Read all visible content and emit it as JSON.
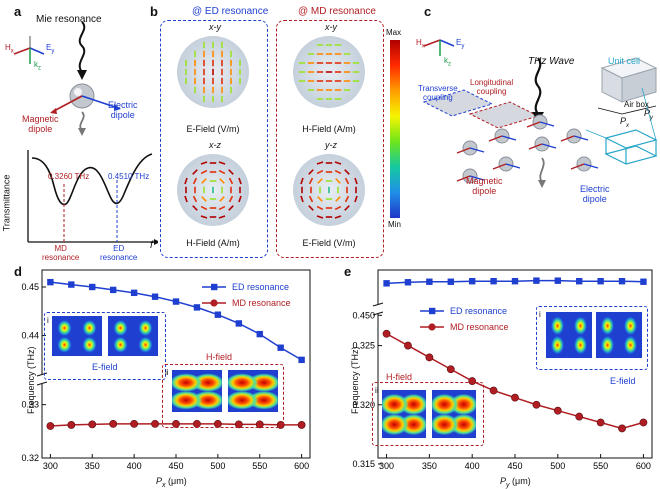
{
  "panel_a": {
    "label": "a",
    "title": "Mie resonance",
    "axes": {
      "h": "H",
      "h_sub": "x",
      "e": "E",
      "e_sub": "y",
      "k": "k",
      "k_sub": "z"
    },
    "magnetic_dipole": "Magnetic\ndipole",
    "electric_dipole": "Electric\ndipole",
    "transmittance_label": "Transmittance",
    "freq_axis": "f",
    "md_freq": "0.3260 THz",
    "ed_freq": "0.4510 THz",
    "md_res": "MD\nresonance",
    "ed_res": "ED\nresonance"
  },
  "panel_b": {
    "label": "b",
    "ed_title": "@ ED resonance",
    "md_title": "@ MD resonance",
    "cells": [
      {
        "plane": "x-y",
        "field": "E-Field (V/m)"
      },
      {
        "plane": "x-y",
        "field": "H-Field (A/m)"
      },
      {
        "plane": "x-z",
        "field": "H-Field (A/m)"
      },
      {
        "plane": "y-z",
        "field": "E-Field (V/m)"
      }
    ],
    "colorbar_max": "Max",
    "colorbar_min": "Min"
  },
  "panel_c": {
    "label": "c",
    "thz_wave": "THz Wave",
    "unit_cell": "Unit cell",
    "air_box": "Air box",
    "transverse": "Transverse\ncoupling",
    "longitudinal": "Longitudinal\ncoupling",
    "magnetic_dipole": "Magnetic\ndipole",
    "electric_dipole": "Electric\ndipole",
    "px": "P",
    "px_sub": "x",
    "py": "P",
    "py_sub": "y"
  },
  "panel_d": {
    "label": "d",
    "legend_ed": "ED  resonance",
    "legend_md": "MD resonance",
    "inset_i_caption": "E-field",
    "inset_ii_caption": "H-field",
    "inset_i": "i",
    "inset_ii": "ii",
    "ylabel": "Frequency (THz)",
    "xlabel_var": "P",
    "xlabel_sub": "x",
    "xlabel_unit": " (μm)"
  },
  "panel_e": {
    "label": "e",
    "legend_ed": "ED  resonance",
    "legend_md": "MD resonance",
    "inset_i_caption": "E-field",
    "inset_ii_caption": "H-field",
    "inset_i": "i",
    "inset_ii": "ii",
    "ylabel": "Frequency (THz)",
    "xlabel_var": "P",
    "xlabel_sub": "y",
    "xlabel_unit": " (μm)"
  },
  "colors": {
    "ed": "#1f3fd0",
    "md": "#b01e23"
  },
  "chart_data": [
    {
      "type": "line",
      "panel": "d",
      "x": [
        300,
        325,
        350,
        375,
        400,
        425,
        450,
        475,
        500,
        525,
        550,
        575,
        600
      ],
      "series": [
        {
          "name": "ED  resonance",
          "values": [
            0.451,
            0.4505,
            0.45,
            0.4494,
            0.4488,
            0.448,
            0.447,
            0.4458,
            0.4443,
            0.4425,
            0.4403,
            0.4375,
            0.435
          ]
        },
        {
          "name": "MD resonance",
          "values": [
            0.326,
            0.3262,
            0.3263,
            0.3264,
            0.3264,
            0.3264,
            0.3264,
            0.3264,
            0.3264,
            0.3263,
            0.3263,
            0.3262,
            0.3262
          ]
        }
      ],
      "xlim": [
        290,
        610
      ],
      "xticks": [
        "300",
        "350",
        "400",
        "450",
        "500",
        "550",
        "600"
      ],
      "yticks_top": [
        "0.44",
        "0.45"
      ],
      "yticks_bottom": [
        "0.32",
        "0.33"
      ],
      "ylim_top": [
        0.4325,
        0.4535
      ],
      "ylim_bottom": [
        0.32,
        0.3335
      ],
      "axis_break": true
    },
    {
      "type": "line",
      "panel": "e",
      "x": [
        300,
        325,
        350,
        375,
        400,
        425,
        450,
        475,
        500,
        525,
        550,
        575,
        600
      ],
      "series": [
        {
          "name": "ED  resonance",
          "values": [
            0.456,
            0.4562,
            0.4563,
            0.4563,
            0.4564,
            0.4564,
            0.4564,
            0.4565,
            0.4565,
            0.4564,
            0.4564,
            0.4564,
            0.4563
          ]
        },
        {
          "name": "MD resonance",
          "values": [
            0.326,
            0.325,
            0.324,
            0.323,
            0.322,
            0.3212,
            0.3206,
            0.32,
            0.3195,
            0.319,
            0.3185,
            0.318,
            0.3185
          ]
        }
      ],
      "xlim": [
        290,
        610
      ],
      "xticks": [
        "300",
        "350",
        "400",
        "450",
        "500",
        "550",
        "600"
      ],
      "yticks_top": [
        "0.450"
      ],
      "yticks_bottom": [
        "0.315",
        "0.320",
        "0.325"
      ],
      "ylim_top": [
        0.4525,
        0.4585
      ],
      "ylim_bottom": [
        0.3155,
        0.3275
      ],
      "axis_break": true
    }
  ]
}
